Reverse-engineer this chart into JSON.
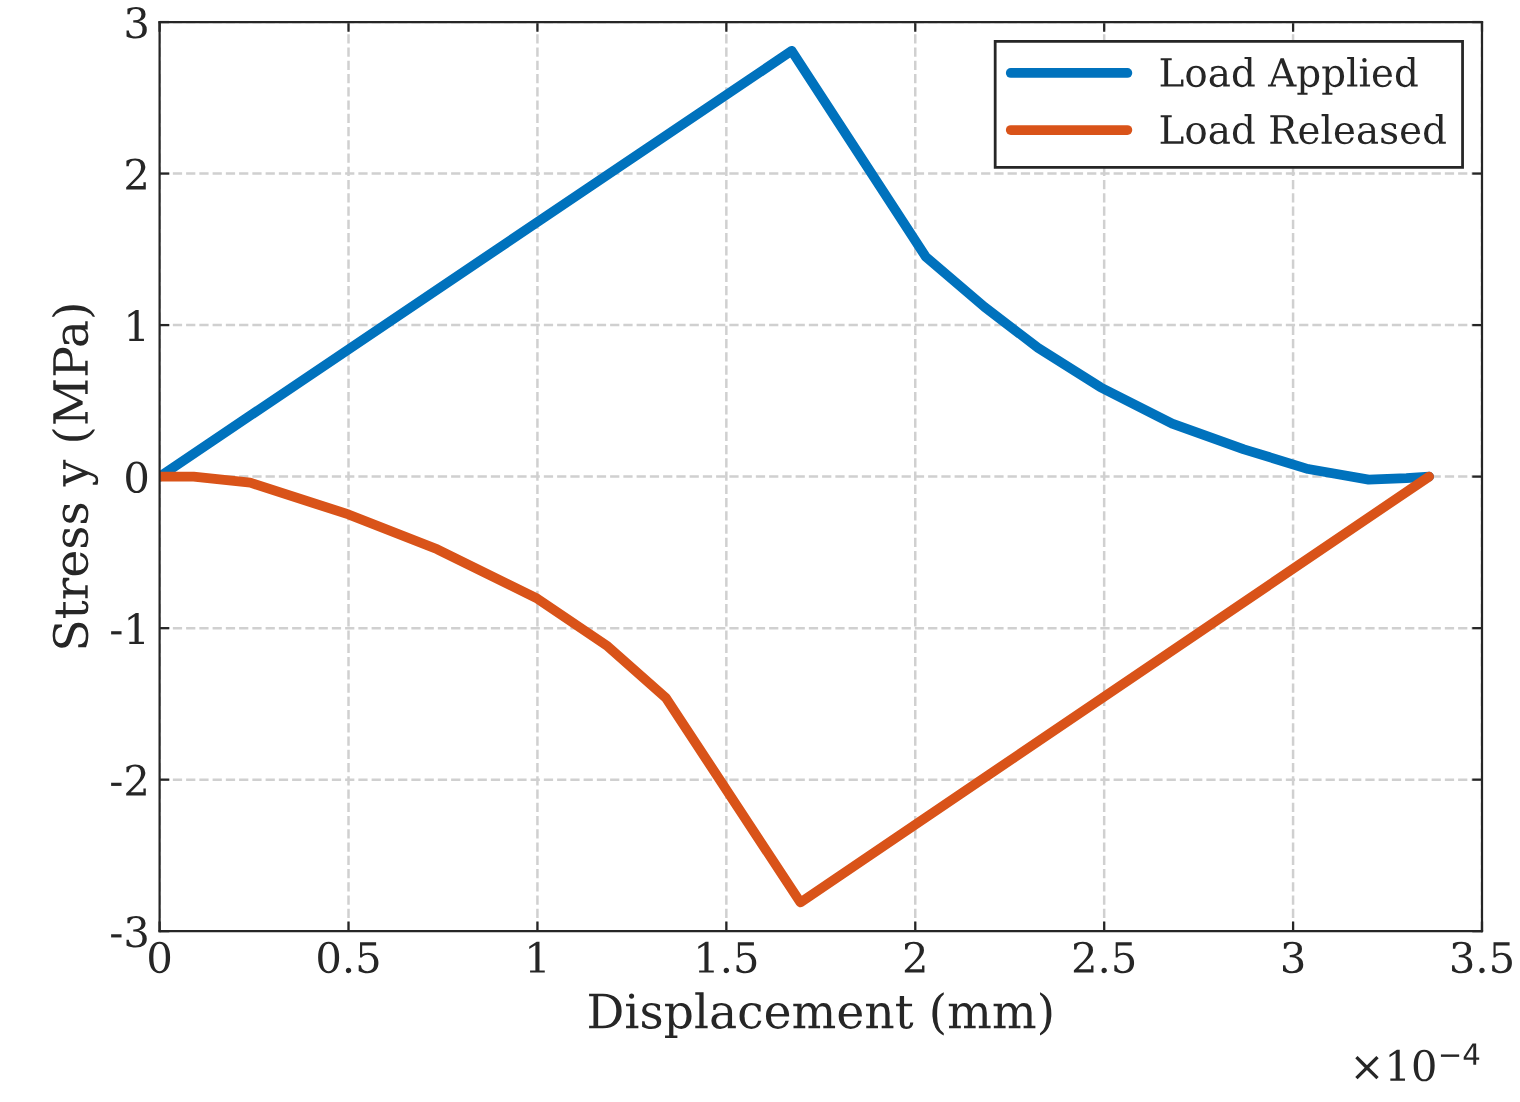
{
  "chart_data": {
    "type": "line",
    "xlabel": "Displacement (mm)",
    "ylabel": "Stress y (MPa)",
    "series": [
      {
        "name": "Load Applied",
        "color": "#0072bd",
        "x": [
          0,
          1.673,
          2.028,
          2.183,
          2.325,
          2.49,
          2.68,
          2.87,
          3.04,
          3.2,
          3.3,
          3.36
        ],
        "values": [
          0,
          2.81,
          1.45,
          1.12,
          0.85,
          0.59,
          0.35,
          0.18,
          0.05,
          -0.02,
          -0.01,
          0
        ]
      },
      {
        "name": "Load Released",
        "color": "#d95319",
        "x": [
          0,
          0.09,
          0.24,
          0.5,
          0.735,
          0.996,
          1.186,
          1.34,
          1.696,
          3.36
        ],
        "values": [
          0,
          0,
          -0.04,
          -0.25,
          -0.48,
          -0.8,
          -1.12,
          -1.46,
          -2.81,
          0
        ]
      }
    ],
    "xlim": [
      0,
      3.5
    ],
    "ylim": [
      -3,
      3
    ],
    "xticks": [
      0,
      0.5,
      1,
      1.5,
      2,
      2.5,
      3,
      3.5
    ],
    "yticks": [
      -3,
      -2,
      -1,
      0,
      1,
      2,
      3
    ],
    "annotations": [
      "×10$^{−4}$"
    ],
    "grid": true,
    "legend": "top right",
    "line_style": "solid",
    "marker": "none"
  }
}
